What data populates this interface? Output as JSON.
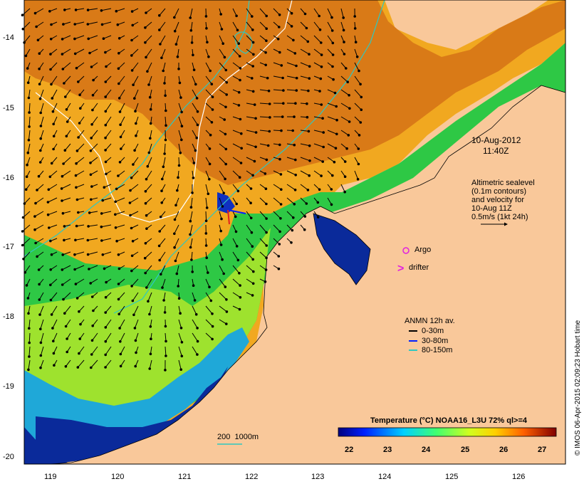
{
  "date_label": {
    "line1": "10-Aug-2012",
    "line2": "11:40Z"
  },
  "altimetry_note": [
    "Altimetric sealevel",
    "(0.1m contours)",
    "and velocity for",
    "10-Aug 11Z",
    "0.5m/s (1kt 24h)"
  ],
  "legend_markers": {
    "argo": "Argo",
    "drifter": "drifter"
  },
  "anmn": {
    "title": "ANMN 12h av.",
    "items": [
      "0-30m",
      "30-80m",
      "80-150m"
    ]
  },
  "depth_contours": "200  1000m",
  "colorbar": {
    "title": "Temperature (°C) NOAA16_L3U 72% ql>=4",
    "ticks": [
      "22",
      "23",
      "24",
      "25",
      "26",
      "27"
    ]
  },
  "lat_ticks": [
    "-14",
    "-15",
    "-16",
    "-17",
    "-18",
    "-19",
    "-20"
  ],
  "lon_ticks": [
    "119",
    "120",
    "121",
    "122",
    "123",
    "124",
    "125",
    "126"
  ],
  "credit": "© IMOS 06-Apr-2015 02:09:23 Hobart time",
  "colors": {
    "land": "#f9c89a",
    "warm": "#d97a17",
    "mid": "#f1a820",
    "green": "#2ec845",
    "blue": "#0a2a9a"
  }
}
